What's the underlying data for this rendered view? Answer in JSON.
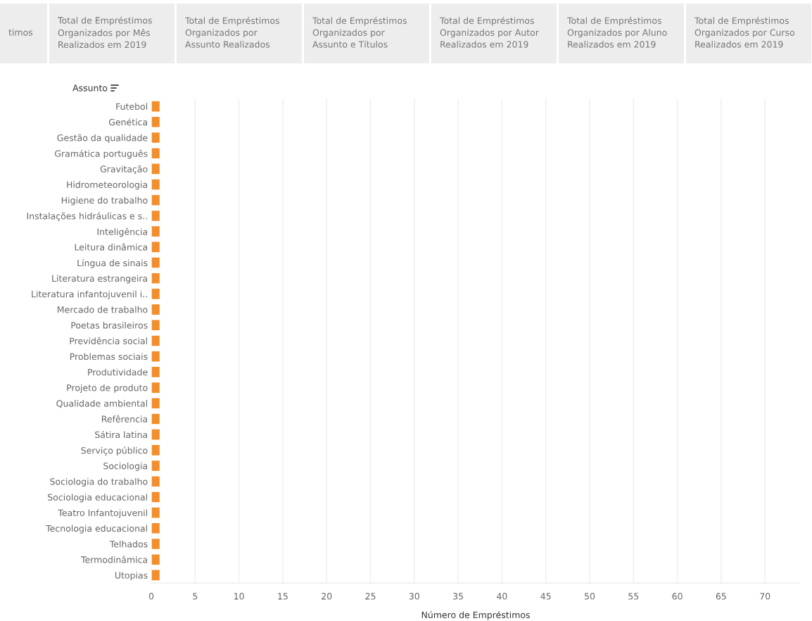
{
  "chart_data": {
    "type": "bar",
    "orientation": "horizontal",
    "ylabel": "Assunto",
    "xlabel": "Número de Empréstimos",
    "annotations": [
      "timos",
      "Total de Empréstimos\nOrganizados por Mês\nRealizados em 2019",
      "Total de Empréstimos\nOrganizados por\nAssunto Realizados",
      "Total de Empréstimos\nOrganizados por\nAssunto e Títulos",
      "Total de Empréstimos\nOrganizados por Autor\nRealizados em 2019",
      "Total de Empréstimos\nOrganizados por Aluno\nRealizados em 2019",
      "Total de Empréstimos\nOrganizados por Curso\nRealizados em 2019"
    ],
    "categories": [
      "Futebol",
      "Genética",
      "Gestão da qualidade",
      "Gramática português",
      "Gravitação",
      "Hidrometeorologia",
      "Higiene do trabalho",
      "Instalações hidráulicas e s..",
      "Inteligência",
      "Leitura dinâmica",
      "Língua de sinais",
      "Literatura estrangeira",
      "Literatura infantojuvenil i..",
      "Mercado de trabalho",
      "Poetas brasileiros",
      "Previdência social",
      "Problemas sociais",
      "Produtividade",
      "Projeto de produto",
      "Qualidade ambiental",
      "Refêrencia",
      "Sátira latina",
      "Serviço público",
      "Sociologia",
      "Sociologia do trabalho",
      "Sociologia educacional",
      "Teatro Infantojuvenil",
      "Tecnologia educacional",
      "Telhados",
      "Termodinâmica",
      "Utopias"
    ],
    "values": [
      1,
      1,
      1,
      1,
      1,
      1,
      1,
      1,
      1,
      1,
      1,
      1,
      1,
      1,
      1,
      1,
      1,
      1,
      1,
      1,
      1,
      1,
      1,
      1,
      1,
      1,
      1,
      1,
      1,
      1,
      1
    ],
    "color": "#f28e2b",
    "xlim": [
      0,
      74
    ],
    "xticks": [
      0,
      5,
      10,
      15,
      20,
      25,
      30,
      35,
      40,
      45,
      50,
      55,
      60,
      65,
      70
    ],
    "grid": "x",
    "legend": false
  }
}
